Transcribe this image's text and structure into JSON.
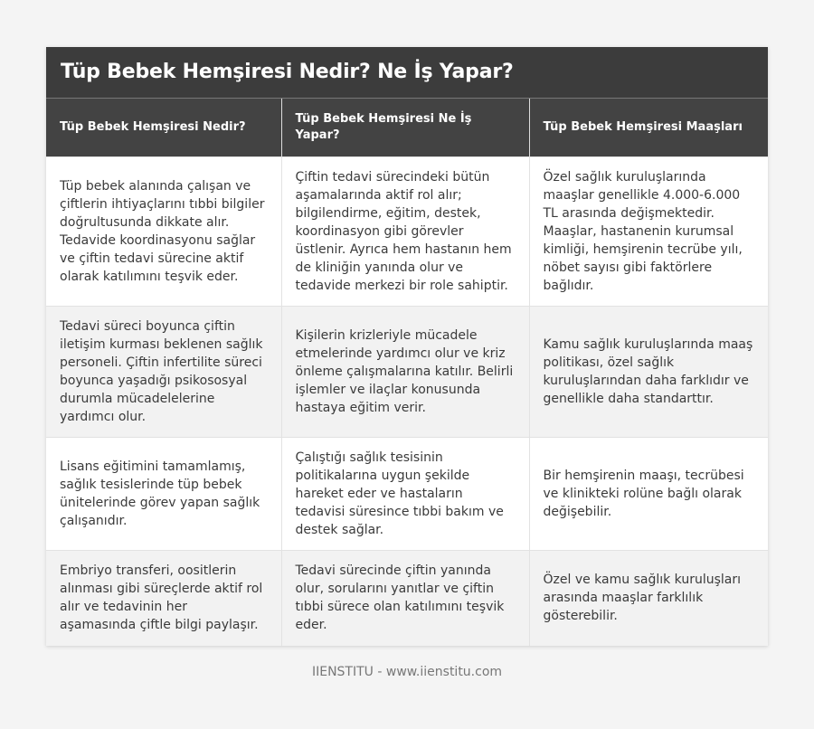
{
  "title": "Tüp Bebek Hemşiresi Nedir? Ne İş Yapar?",
  "headers": [
    "Tüp Bebek Hemşiresi Nedir?",
    "Tüp Bebek Hemşiresi Ne İş Yapar?",
    "Tüp Bebek Hemşiresi Maaşları"
  ],
  "rows": [
    [
      "Tüp bebek alanında çalışan ve çiftlerin ihtiyaçlarını tıbbi bilgiler doğrultusunda dikkate alır. Tedavide koordinasyonu sağlar ve çiftin tedavi sürecine aktif olarak katılımını teşvik eder.",
      "Çiftin tedavi sürecindeki bütün aşamalarında aktif rol alır; bilgilendirme, eğitim, destek, koordinasyon gibi görevler üstlenir. Ayrıca hem hastanın hem de kliniğin yanında olur ve tedavide merkezi bir role sahiptir.",
      "Özel sağlık kuruluşlarında maaşlar genellikle 4.000-6.000 TL arasında değişmektedir. Maaşlar, hastanenin kurumsal kimliği, hemşirenin tecrübe yılı, nöbet sayısı gibi faktörlere bağlıdır."
    ],
    [
      "Tedavi süreci boyunca çiftin iletişim kurması beklenen sağlık personeli. Çiftin infertilite süreci boyunca yaşadığı psikososyal durumla mücadelelerine yardımcı olur.",
      "Kişilerin krizleriyle mücadele etmelerinde yardımcı olur ve kriz önleme çalışmalarına katılır. Belirli işlemler ve ilaçlar konusunda hastaya eğitim verir.",
      "Kamu sağlık kuruluşlarında maaş politikası, özel sağlık kuruluşlarından daha farklıdır ve genellikle daha standarttır."
    ],
    [
      "Lisans eğitimini tamamlamış, sağlık tesislerinde tüp bebek ünitelerinde görev yapan sağlık çalışanıdır.",
      "Çalıştığı sağlık tesisinin politikalarına uygun şekilde hareket eder ve hastaların tedavisi süresince tıbbi bakım ve destek sağlar.",
      "Bir hemşirenin maaşı, tecrübesi ve klinikteki rolüne bağlı olarak değişebilir."
    ],
    [
      "Embriyo transferi, oositlerin alınması gibi süreçlerde aktif rol alır ve tedavinin her aşamasında çiftle bilgi paylaşır.",
      "Tedavi sürecinde çiftin yanında olur, sorularını yanıtlar ve çiftin tıbbi sürece olan katılımını teşvik eder.",
      "Özel ve kamu sağlık kuruluşları arasında maaşlar farklılık gösterebilir."
    ]
  ],
  "footer": "IIENSTITU - www.iienstitu.com"
}
